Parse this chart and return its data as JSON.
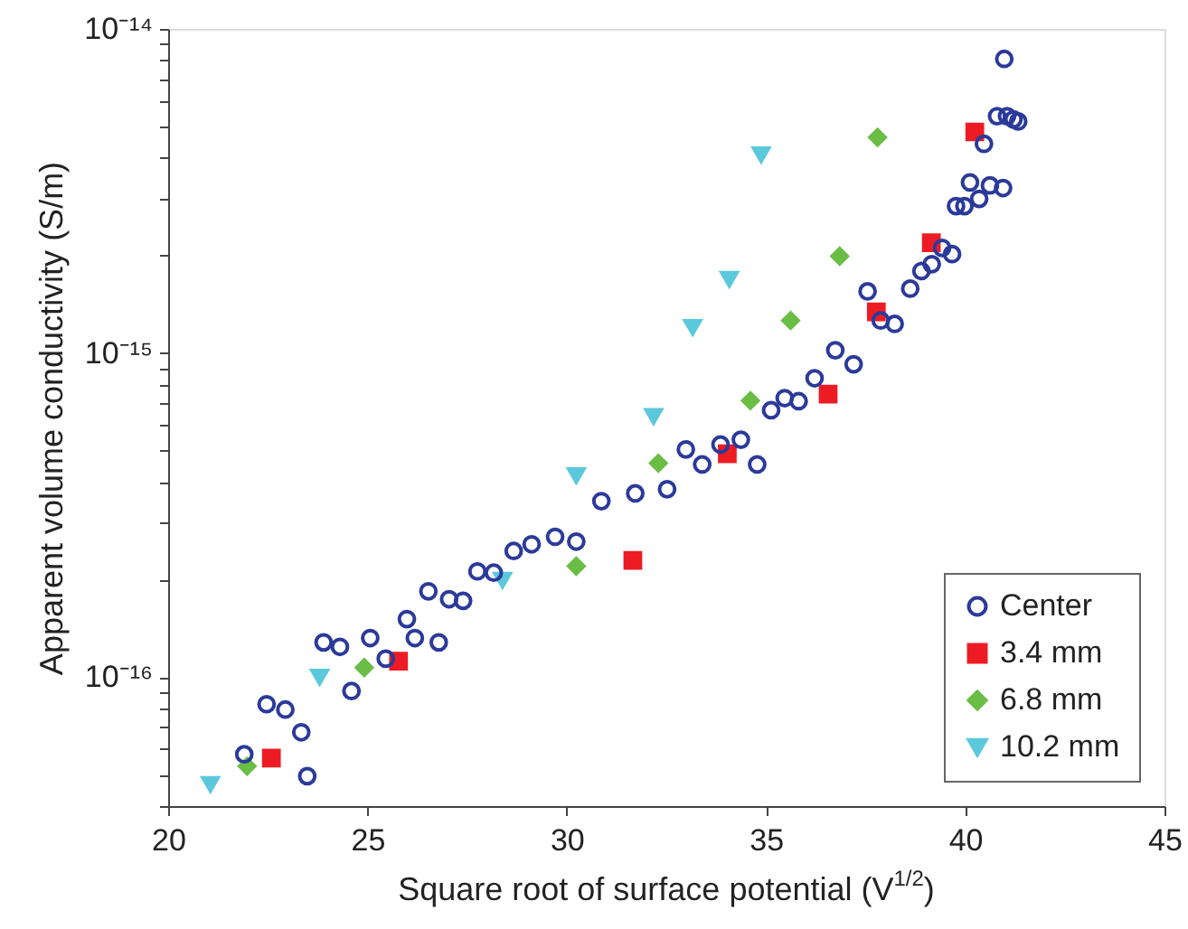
{
  "chart_data": {
    "type": "scatter",
    "xlabel": "Square root of surface potential (V$^{1/2}$)",
    "ylabel": "Apparent volume conductivity (S/m)",
    "xlim": [
      20,
      45
    ],
    "xticks": [
      20,
      25,
      30,
      35,
      40,
      45
    ],
    "ylim": [
      4e-17,
      1e-14
    ],
    "log": "y",
    "grid": false,
    "legend": "bottom right",
    "yticks": [
      {
        "value": 4e-17,
        "label": null
      },
      {
        "value": 5e-17,
        "label": null
      },
      {
        "value": 6e-17,
        "label": null
      },
      {
        "value": 7e-17,
        "label": null
      },
      {
        "value": 8e-17,
        "label": null
      },
      {
        "value": 9e-17,
        "label": null
      },
      {
        "value": 1e-16,
        "label": "10⁻¹⁶"
      },
      {
        "value": 2e-16,
        "label": null
      },
      {
        "value": 3e-16,
        "label": null
      },
      {
        "value": 4e-16,
        "label": null
      },
      {
        "value": 5e-16,
        "label": null
      },
      {
        "value": 6e-16,
        "label": null
      },
      {
        "value": 7e-16,
        "label": null
      },
      {
        "value": 8e-16,
        "label": null
      },
      {
        "value": 9e-16,
        "label": null
      },
      {
        "value": 1e-15,
        "label": "10⁻¹⁵"
      },
      {
        "value": 2e-15,
        "label": null
      },
      {
        "value": 3e-15,
        "label": null
      },
      {
        "value": 4e-15,
        "label": null
      },
      {
        "value": 5e-15,
        "label": null
      },
      {
        "value": 6e-15,
        "label": null
      },
      {
        "value": 7e-15,
        "label": null
      },
      {
        "value": 8e-15,
        "label": null
      },
      {
        "value": 9e-15,
        "label": null
      },
      {
        "value": 1e-14,
        "label": "10⁻¹⁴"
      }
    ],
    "series": [
      {
        "name": "Center",
        "color": "#2b3a9a",
        "marker": "circle",
        "x": [
          21.91,
          22.47,
          22.94,
          23.34,
          23.49,
          23.9,
          24.31,
          24.6,
          25.07,
          25.46,
          25.99,
          26.19,
          26.53,
          26.79,
          27.05,
          27.4,
          27.76,
          28.17,
          28.67,
          29.12,
          29.71,
          30.24,
          30.87,
          31.72,
          32.52,
          32.99,
          33.4,
          33.86,
          34.37,
          34.78,
          35.13,
          35.47,
          35.82,
          36.22,
          36.74,
          37.2,
          37.55,
          37.88,
          38.23,
          38.62,
          38.9,
          39.16,
          39.42,
          39.67,
          39.77,
          39.98,
          40.35,
          40.12,
          40.62,
          40.95,
          40.47,
          40.8,
          41.05,
          41.21,
          41.33,
          40.98
        ],
        "values": [
          5.78e-17,
          8.25e-17,
          7.94e-17,
          6.76e-17,
          4.95e-17,
          1.28e-16,
          1.24e-16,
          9.06e-17,
          1.32e-16,
          1.14e-16,
          1.51e-16,
          1.32e-16,
          1.84e-16,
          1.28e-16,
          1.74e-16,
          1.72e-16,
          2.12e-16,
          2.1e-16,
          2.45e-16,
          2.57e-16,
          2.71e-16,
          2.62e-16,
          3.49e-16,
          3.69e-16,
          3.8e-16,
          5.04e-16,
          4.53e-16,
          5.22e-16,
          5.4e-16,
          4.53e-16,
          6.66e-16,
          7.26e-16,
          7.1e-16,
          8.36e-16,
          1.02e-15,
          9.23e-16,
          1.55e-15,
          1.26e-15,
          1.23e-15,
          1.58e-15,
          1.79e-15,
          1.88e-15,
          2.11e-15,
          2.02e-15,
          2.84e-15,
          2.84e-15,
          2.99e-15,
          3.36e-15,
          3.29e-15,
          3.23e-15,
          4.42e-15,
          5.38e-15,
          5.38e-15,
          5.26e-15,
          5.18e-15,
          8.08e-15
        ]
      },
      {
        "name": "3.4 mm",
        "color": "#ed1c24",
        "marker": "square",
        "x": [
          22.59,
          25.78,
          31.66,
          34.03,
          36.56,
          37.77,
          39.15,
          40.24
        ],
        "values": [
          5.63e-17,
          1.12e-16,
          2.29e-16,
          4.89e-16,
          7.47e-16,
          1.34e-15,
          2.19e-15,
          4.81e-15
        ]
      },
      {
        "name": "6.8 mm",
        "color": "#6abd45",
        "marker": "diamond",
        "x": [
          21.98,
          24.92,
          30.24,
          32.3,
          34.61,
          35.62,
          36.85,
          37.8
        ],
        "values": [
          5.31e-17,
          1.07e-16,
          2.2e-16,
          4.57e-16,
          7.13e-16,
          1.26e-15,
          1.99e-15,
          4.63e-15
        ]
      },
      {
        "name": "10.2 mm",
        "color": "#5bc8dc",
        "marker": "triangle",
        "x": [
          21.06,
          23.8,
          28.39,
          30.24,
          32.18,
          33.16,
          34.08,
          34.88
        ],
        "values": [
          4.67e-17,
          1e-16,
          1.99e-16,
          4.19e-16,
          6.38e-16,
          1.2e-15,
          1.69e-15,
          4.09e-15
        ]
      }
    ]
  }
}
